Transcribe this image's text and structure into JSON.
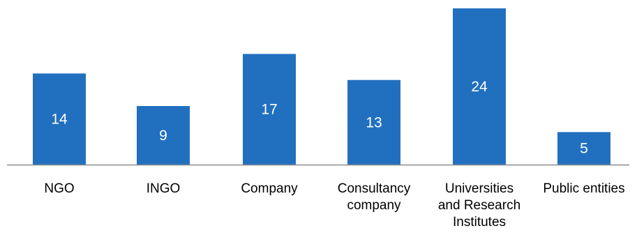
{
  "chart_data": {
    "type": "bar",
    "categories": [
      [
        "NGO"
      ],
      [
        "INGO"
      ],
      [
        "Company"
      ],
      [
        "Consultancy",
        "company"
      ],
      [
        "Universities",
        "and Research",
        "Institutes"
      ],
      [
        "Public entities"
      ]
    ],
    "values": [
      14,
      9,
      17,
      13,
      24,
      5
    ],
    "data_labels": [
      "14",
      "9",
      "17",
      "13",
      "24",
      "5"
    ],
    "title": "",
    "xlabel": "",
    "ylabel": "",
    "ylim": [
      0,
      24
    ],
    "grid": false,
    "legend": "none",
    "colors": {
      "bar": "#2170C0",
      "label": "#ffffff",
      "axis": "#8c8c8c"
    }
  }
}
